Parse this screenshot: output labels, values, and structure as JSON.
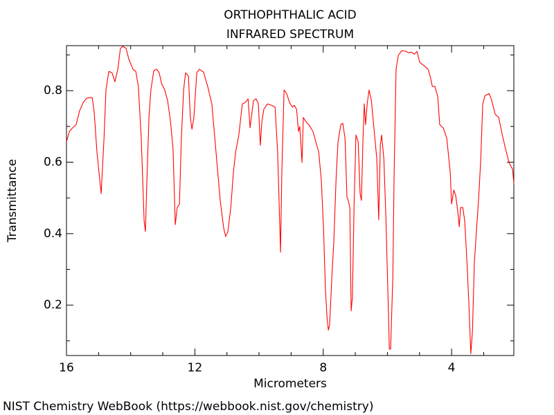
{
  "chart_data": {
    "type": "line",
    "title": "ORTHOPHTHALIC ACID",
    "subtitle": "INFRARED SPECTRUM",
    "x_label": "Micrometers",
    "y_label": "Transmittance",
    "color": "#ff0000",
    "xlim": [
      16,
      2.06
    ],
    "ylim": [
      0.059,
      0.926
    ],
    "xticks": [
      16,
      12,
      8,
      4
    ],
    "yticks": [
      0.2,
      0.4,
      0.6,
      0.8
    ],
    "xminorticks": [
      15,
      14,
      13,
      11,
      10,
      9,
      7,
      6,
      5,
      3
    ],
    "yminorticks": [
      0.1,
      0.3,
      0.5,
      0.7,
      0.9
    ],
    "x": [
      16.0,
      15.91,
      15.81,
      15.7,
      15.59,
      15.48,
      15.37,
      15.2,
      15.14,
      15.05,
      14.92,
      14.83,
      14.77,
      14.68,
      14.58,
      14.49,
      14.4,
      14.32,
      14.25,
      14.14,
      14.06,
      13.93,
      13.84,
      13.76,
      13.67,
      13.58,
      13.54,
      13.5,
      13.43,
      13.37,
      13.28,
      13.19,
      13.11,
      13.04,
      12.94,
      12.85,
      12.76,
      12.68,
      12.61,
      12.55,
      12.48,
      12.42,
      12.35,
      12.29,
      12.2,
      12.14,
      12.09,
      12.03,
      11.94,
      11.86,
      11.73,
      11.6,
      11.47,
      11.34,
      11.21,
      11.1,
      11.04,
      10.97,
      10.88,
      10.8,
      10.73,
      10.63,
      10.52,
      10.43,
      10.34,
      10.28,
      10.24,
      10.17,
      10.09,
      10.02,
      9.96,
      9.91,
      9.85,
      9.74,
      9.61,
      9.5,
      9.42,
      9.33,
      9.29,
      9.22,
      9.14,
      9.05,
      8.96,
      8.9,
      8.83,
      8.77,
      8.73,
      8.66,
      8.62,
      8.55,
      8.45,
      8.32,
      8.23,
      8.14,
      8.06,
      7.99,
      7.93,
      7.88,
      7.84,
      7.8,
      7.73,
      7.67,
      7.6,
      7.54,
      7.45,
      7.39,
      7.32,
      7.26,
      7.22,
      7.17,
      7.13,
      7.09,
      7.04,
      6.98,
      6.91,
      6.85,
      6.81,
      6.76,
      6.72,
      6.68,
      6.63,
      6.57,
      6.5,
      6.42,
      6.33,
      6.27,
      6.22,
      6.18,
      6.11,
      6.05,
      5.98,
      5.94,
      5.9,
      5.83,
      5.79,
      5.73,
      5.66,
      5.55,
      5.42,
      5.34,
      5.25,
      5.16,
      5.08,
      4.99,
      4.86,
      4.73,
      4.67,
      4.6,
      4.52,
      4.43,
      4.37,
      4.26,
      4.15,
      4.04,
      4.0,
      3.93,
      3.87,
      3.81,
      3.76,
      3.72,
      3.65,
      3.59,
      3.52,
      3.46,
      3.4,
      3.35,
      3.29,
      3.22,
      3.16,
      3.09,
      3.03,
      2.96,
      2.83,
      2.75,
      2.64,
      2.53,
      2.42,
      2.32,
      2.21,
      2.1,
      2.06
    ],
    "values": [
      0.657,
      0.686,
      0.696,
      0.705,
      0.744,
      0.767,
      0.779,
      0.781,
      0.744,
      0.628,
      0.512,
      0.667,
      0.802,
      0.854,
      0.85,
      0.825,
      0.86,
      0.918,
      0.924,
      0.918,
      0.889,
      0.86,
      0.854,
      0.812,
      0.667,
      0.435,
      0.406,
      0.531,
      0.725,
      0.802,
      0.856,
      0.86,
      0.85,
      0.821,
      0.802,
      0.773,
      0.715,
      0.638,
      0.425,
      0.473,
      0.483,
      0.667,
      0.802,
      0.85,
      0.841,
      0.725,
      0.692,
      0.725,
      0.85,
      0.86,
      0.852,
      0.812,
      0.763,
      0.628,
      0.493,
      0.415,
      0.392,
      0.406,
      0.473,
      0.57,
      0.628,
      0.676,
      0.763,
      0.767,
      0.777,
      0.696,
      0.725,
      0.773,
      0.777,
      0.763,
      0.647,
      0.715,
      0.748,
      0.763,
      0.759,
      0.754,
      0.628,
      0.348,
      0.57,
      0.802,
      0.792,
      0.767,
      0.754,
      0.759,
      0.748,
      0.686,
      0.7,
      0.599,
      0.725,
      0.715,
      0.705,
      0.686,
      0.657,
      0.628,
      0.551,
      0.415,
      0.242,
      0.164,
      0.13,
      0.145,
      0.28,
      0.377,
      0.551,
      0.657,
      0.705,
      0.709,
      0.667,
      0.502,
      0.493,
      0.473,
      0.184,
      0.222,
      0.473,
      0.676,
      0.657,
      0.512,
      0.493,
      0.667,
      0.763,
      0.705,
      0.763,
      0.802,
      0.773,
      0.696,
      0.609,
      0.439,
      0.647,
      0.676,
      0.609,
      0.454,
      0.222,
      0.077,
      0.077,
      0.28,
      0.57,
      0.86,
      0.899,
      0.912,
      0.91,
      0.906,
      0.908,
      0.902,
      0.91,
      0.879,
      0.87,
      0.86,
      0.841,
      0.812,
      0.812,
      0.783,
      0.705,
      0.696,
      0.667,
      0.57,
      0.483,
      0.522,
      0.506,
      0.464,
      0.419,
      0.473,
      0.473,
      0.435,
      0.319,
      0.203,
      0.064,
      0.126,
      0.319,
      0.415,
      0.493,
      0.609,
      0.763,
      0.786,
      0.792,
      0.773,
      0.734,
      0.725,
      0.676,
      0.638,
      0.599,
      0.58,
      0.541
    ]
  },
  "footer": "NIST Chemistry WebBook (https://webbook.nist.gov/chemistry)"
}
